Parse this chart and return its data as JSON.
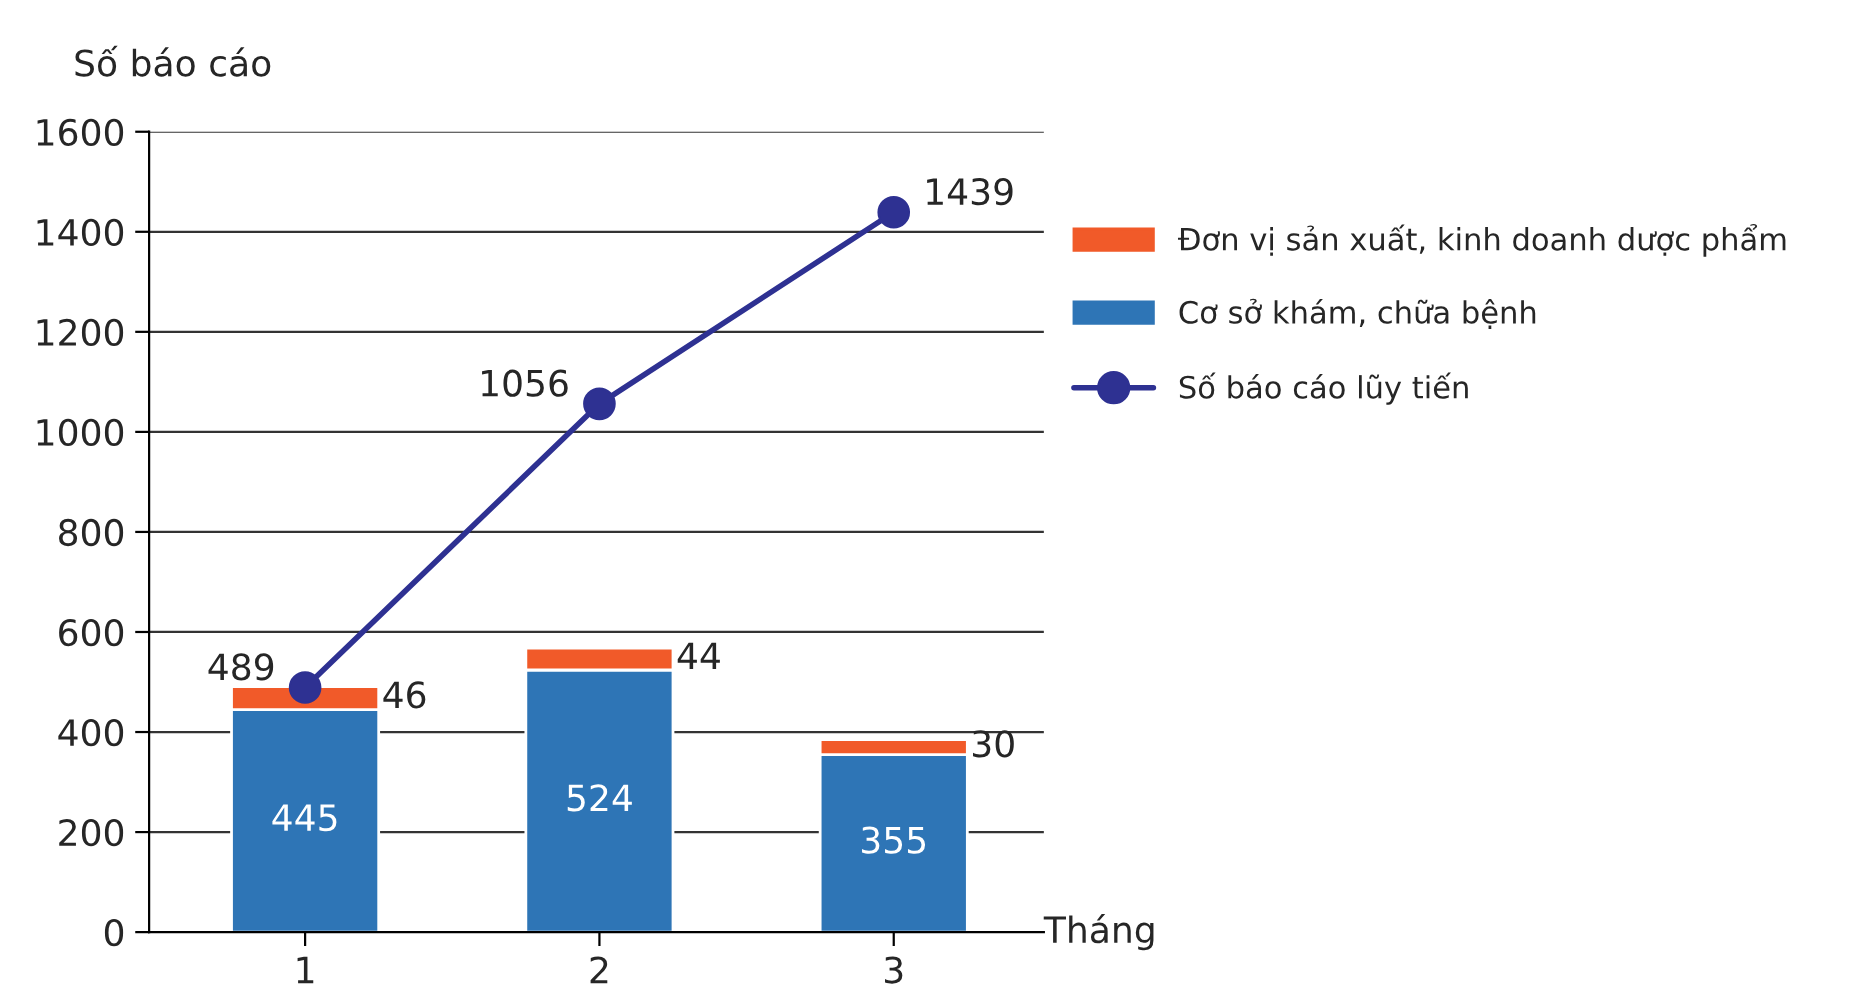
{
  "chart_data": {
    "type": "bar",
    "stacked": true,
    "xlabel": "Tháng",
    "ylabel": "Số báo cáo",
    "categories": [
      "1",
      "2",
      "3"
    ],
    "series": [
      {
        "name": "Cơ sở khám, chữa bệnh",
        "color": "#2e75b6",
        "values": [
          445,
          524,
          355
        ]
      },
      {
        "name": "Đơn vị sản xuất, kinh doanh dược phẩm",
        "color": "#f15a29",
        "values": [
          46,
          44,
          30
        ]
      },
      {
        "name": "Số báo cáo lũy tiến",
        "type": "line",
        "color": "#2e3192",
        "marker": "circle",
        "values": [
          489,
          1056,
          1439
        ]
      }
    ],
    "ylim": [
      0,
      1600
    ],
    "yticks": [
      0,
      200,
      400,
      600,
      800,
      1000,
      1200,
      1400,
      1600
    ],
    "grid": "y",
    "legend": "right",
    "data_labels": true
  }
}
